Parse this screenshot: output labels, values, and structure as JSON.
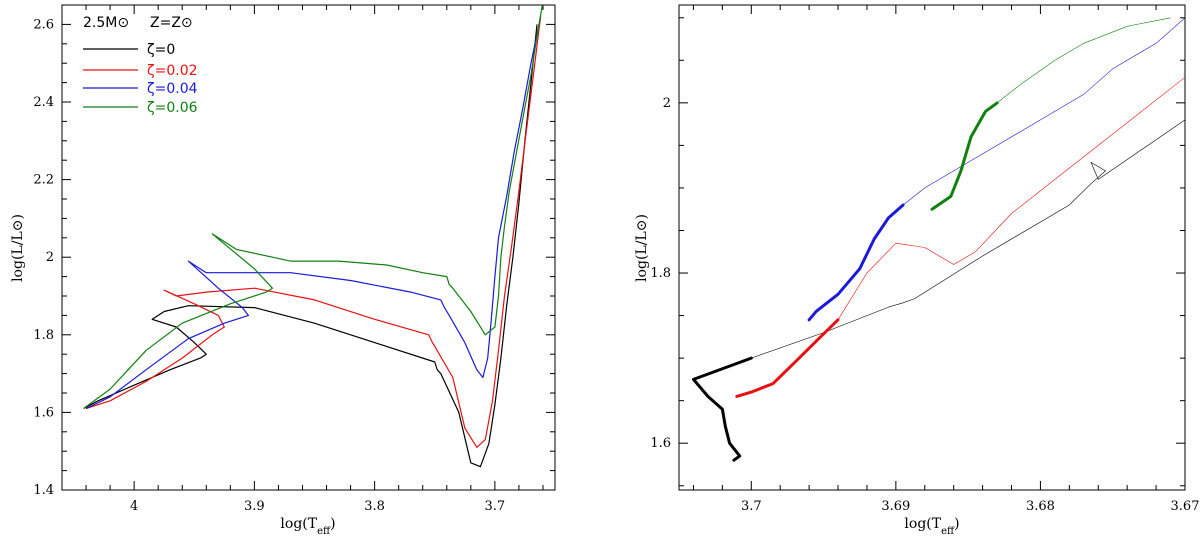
{
  "chart_data": [
    {
      "type": "line",
      "xlabel": "log(T_eff)",
      "ylabel": "log(L/L⊙)",
      "xlim": [
        4.06,
        3.65
      ],
      "ylim": [
        1.4,
        2.65
      ],
      "x_ticks": [
        "4",
        "3.9",
        "3.8",
        "3.7"
      ],
      "y_ticks": [
        "1.4",
        "1.6",
        "1.8",
        "2",
        "2.2",
        "2.4",
        "2.6"
      ],
      "header": {
        "mass": "2.5M⊙",
        "metallicity": "Z=Z⊙"
      },
      "legend_position": "top-left",
      "series": [
        {
          "name": "ζ=0",
          "color": "#000000",
          "x": [
            4.042,
            4.03,
            4.0,
            3.97,
            3.945,
            3.94,
            3.95,
            3.965,
            3.985,
            3.975,
            3.955,
            3.9,
            3.85,
            3.8,
            3.75,
            3.748,
            3.745,
            3.73,
            3.72,
            3.712,
            3.705,
            3.7,
            3.695,
            3.69,
            3.685,
            3.68,
            3.675,
            3.67,
            3.665
          ],
          "y": [
            1.61,
            1.63,
            1.67,
            1.71,
            1.74,
            1.75,
            1.78,
            1.82,
            1.84,
            1.86,
            1.875,
            1.87,
            1.83,
            1.78,
            1.73,
            1.71,
            1.7,
            1.6,
            1.47,
            1.46,
            1.52,
            1.62,
            1.74,
            1.88,
            2.0,
            2.14,
            2.3,
            2.45,
            2.6
          ]
        },
        {
          "name": "ζ=0.02",
          "color": "#e81010",
          "x": [
            4.04,
            4.02,
            3.99,
            3.96,
            3.935,
            3.925,
            3.93,
            3.95,
            3.975,
            3.965,
            3.94,
            3.9,
            3.85,
            3.8,
            3.755,
            3.752,
            3.75,
            3.735,
            3.725,
            3.715,
            3.708,
            3.702,
            3.697,
            3.692,
            3.686,
            3.68,
            3.674,
            3.668,
            3.662
          ],
          "y": [
            1.61,
            1.63,
            1.68,
            1.74,
            1.8,
            1.82,
            1.85,
            1.88,
            1.915,
            1.9,
            1.91,
            1.92,
            1.89,
            1.84,
            1.8,
            1.78,
            1.77,
            1.69,
            1.56,
            1.51,
            1.53,
            1.63,
            1.76,
            1.9,
            2.03,
            2.17,
            2.32,
            2.47,
            2.62
          ]
        },
        {
          "name": "ζ=0.04",
          "color": "#1a1ad8",
          "x": [
            4.04,
            4.02,
            3.99,
            3.955,
            3.925,
            3.905,
            3.91,
            3.93,
            3.955,
            3.94,
            3.91,
            3.87,
            3.82,
            3.77,
            3.745,
            3.742,
            3.738,
            3.725,
            3.715,
            3.71,
            3.706,
            3.703,
            3.7,
            3.697,
            3.69,
            3.684,
            3.677,
            3.67,
            3.662
          ],
          "y": [
            1.61,
            1.64,
            1.71,
            1.79,
            1.83,
            1.85,
            1.87,
            1.92,
            1.99,
            1.96,
            1.96,
            1.96,
            1.94,
            1.91,
            1.89,
            1.87,
            1.85,
            1.78,
            1.71,
            1.69,
            1.74,
            1.84,
            1.95,
            2.05,
            2.16,
            2.27,
            2.38,
            2.5,
            2.62
          ]
        },
        {
          "name": "ζ=0.06",
          "color": "#108010",
          "x": [
            4.042,
            4.02,
            3.99,
            3.96,
            3.92,
            3.89,
            3.885,
            3.9,
            3.935,
            3.915,
            3.87,
            3.83,
            3.79,
            3.76,
            3.74,
            3.738,
            3.735,
            3.72,
            3.708,
            3.7,
            3.697,
            3.695,
            3.692,
            3.688,
            3.682,
            3.676,
            3.67,
            3.665,
            3.66
          ],
          "y": [
            1.61,
            1.66,
            1.76,
            1.83,
            1.88,
            1.91,
            1.92,
            1.97,
            2.06,
            2.02,
            1.99,
            1.99,
            1.98,
            1.96,
            1.95,
            1.93,
            1.92,
            1.86,
            1.8,
            1.82,
            1.9,
            2.0,
            2.08,
            2.17,
            2.27,
            2.37,
            2.47,
            2.57,
            2.66
          ]
        }
      ]
    },
    {
      "type": "line",
      "xlabel": "log(T_eff)",
      "ylabel": "log(L/L⊙)",
      "xlim": [
        3.705,
        3.67
      ],
      "ylim": [
        1.545,
        2.115
      ],
      "x_ticks": [
        "3.7",
        "3.69",
        "3.68",
        "3.67"
      ],
      "y_ticks": [
        "1.6",
        "1.8",
        "2"
      ],
      "series": [
        {
          "name": "ζ=0",
          "color": "#000000",
          "x": [
            3.7012,
            3.7008,
            3.7015,
            3.7018,
            3.702,
            3.703,
            3.704,
            3.7,
            3.695,
            3.692,
            3.6905,
            3.6895,
            3.6887,
            3.684,
            3.678,
            3.6765,
            3.6755,
            3.6765,
            3.676,
            3.67
          ],
          "y": [
            1.58,
            1.585,
            1.6,
            1.62,
            1.64,
            1.655,
            1.675,
            1.7,
            1.73,
            1.75,
            1.76,
            1.765,
            1.77,
            1.82,
            1.88,
            1.905,
            1.92,
            1.93,
            1.91,
            1.98
          ],
          "thick_from": 0,
          "thick_to": 7
        },
        {
          "name": "ζ=0.02",
          "color": "#e81010",
          "x": [
            3.701,
            3.7,
            3.6985,
            3.697,
            3.6955,
            3.694,
            3.692,
            3.69,
            3.688,
            3.686,
            3.6845,
            3.682,
            3.679,
            3.676,
            3.673,
            3.67
          ],
          "y": [
            1.655,
            1.66,
            1.67,
            1.695,
            1.72,
            1.745,
            1.8,
            1.835,
            1.83,
            1.81,
            1.825,
            1.87,
            1.91,
            1.95,
            1.99,
            2.03
          ],
          "thick_from": 0,
          "thick_to": 5
        },
        {
          "name": "ζ=0.04",
          "color": "#1a1ad8",
          "x": [
            3.696,
            3.6955,
            3.694,
            3.6925,
            3.6915,
            3.6905,
            3.6895,
            3.688,
            3.685,
            3.68,
            3.677,
            3.675,
            3.672,
            3.67
          ],
          "y": [
            1.745,
            1.755,
            1.775,
            1.805,
            1.84,
            1.865,
            1.88,
            1.9,
            1.93,
            1.98,
            2.01,
            2.04,
            2.07,
            2.1
          ],
          "thick_from": 0,
          "thick_to": 6
        },
        {
          "name": "ζ=0.06",
          "color": "#108010",
          "x": [
            3.6875,
            3.6862,
            3.6855,
            3.6848,
            3.6838,
            3.683,
            3.6815,
            3.679,
            3.677,
            3.674,
            3.671
          ],
          "y": [
            1.875,
            1.89,
            1.92,
            1.96,
            1.99,
            2.0,
            2.02,
            2.05,
            2.07,
            2.09,
            2.1
          ],
          "thick_from": 0,
          "thick_to": 5
        }
      ]
    }
  ]
}
